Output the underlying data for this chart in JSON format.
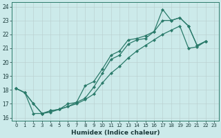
{
  "xlabel": "Humidex (Indice chaleur)",
  "ylabel": "",
  "bg_color": "#cceaea",
  "grid_color": "#b8d4d4",
  "line_color": "#2a7a6a",
  "xlim": [
    -0.5,
    23.5
  ],
  "ylim": [
    15.8,
    24.3
  ],
  "xticks": [
    0,
    1,
    2,
    3,
    4,
    5,
    6,
    7,
    8,
    9,
    10,
    11,
    12,
    13,
    14,
    15,
    16,
    17,
    18,
    19,
    20,
    21,
    22,
    23
  ],
  "yticks": [
    16,
    17,
    18,
    19,
    20,
    21,
    22,
    23,
    24
  ],
  "line1_x": [
    0,
    1,
    2,
    3,
    4,
    5,
    6,
    7,
    8,
    9,
    10,
    11,
    12,
    13,
    14,
    15,
    16,
    17,
    18,
    19,
    20,
    21,
    22,
    23
  ],
  "line1_y": [
    18.1,
    17.8,
    17.0,
    16.3,
    16.5,
    16.6,
    17.0,
    17.1,
    18.3,
    18.6,
    19.5,
    20.5,
    20.8,
    21.6,
    21.7,
    21.9,
    22.2,
    23.8,
    23.0,
    23.2,
    22.6,
    21.2,
    21.5,
    null
  ],
  "line2_x": [
    0,
    1,
    2,
    3,
    4,
    5,
    6,
    7,
    8,
    9,
    10,
    11,
    12,
    13,
    14,
    15,
    16,
    17,
    18,
    19,
    20,
    21,
    22,
    23
  ],
  "line2_y": [
    18.1,
    17.8,
    17.0,
    16.3,
    16.5,
    16.6,
    16.8,
    17.1,
    17.4,
    18.2,
    19.2,
    20.2,
    20.5,
    21.3,
    21.6,
    21.7,
    22.2,
    23.0,
    23.0,
    23.2,
    22.6,
    21.2,
    21.5,
    null
  ],
  "line3_x": [
    0,
    1,
    2,
    3,
    4,
    5,
    6,
    7,
    8,
    9,
    10,
    11,
    12,
    13,
    14,
    15,
    16,
    17,
    18,
    19,
    20,
    21,
    22,
    23
  ],
  "line3_y": [
    18.1,
    17.8,
    16.3,
    16.3,
    16.4,
    16.6,
    16.8,
    17.0,
    17.3,
    17.7,
    18.5,
    19.2,
    19.7,
    20.3,
    20.8,
    21.2,
    21.6,
    22.0,
    22.3,
    22.6,
    21.0,
    21.1,
    21.5,
    null
  ]
}
